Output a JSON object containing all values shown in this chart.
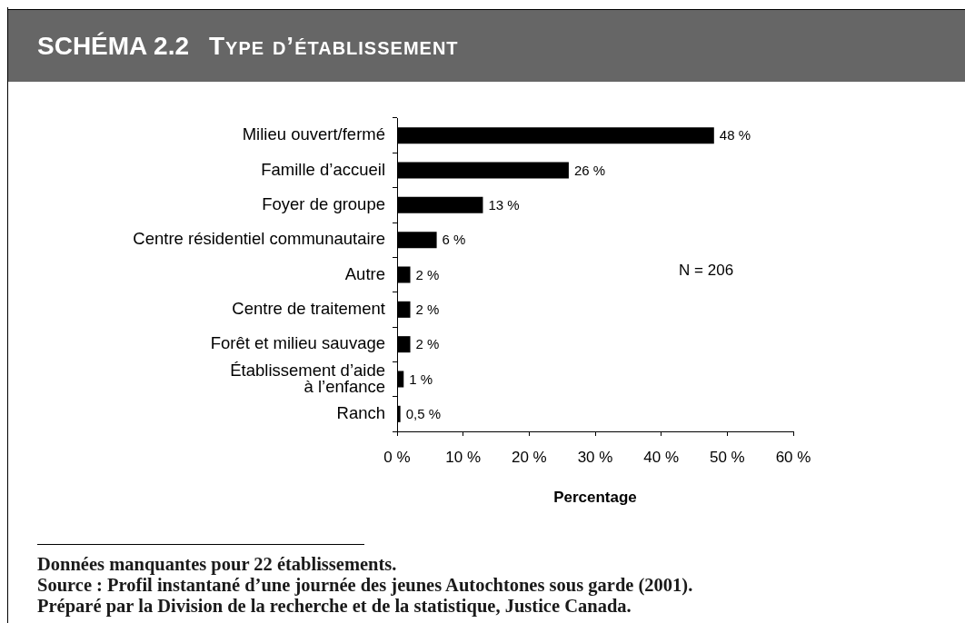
{
  "chart_data": {
    "type": "bar",
    "orientation": "horizontal",
    "title": "SCHÉMA 2.2",
    "subtitle": "Type d’établissement",
    "xlabel": "Percentage",
    "categories": [
      "Milieu ouvert/fermé",
      "Famille d’accueil",
      "Foyer de groupe",
      "Centre résidentiel communautaire",
      "Autre",
      "Centre de traitement",
      "Forêt et milieu sauvage",
      "Établissement d’aide\nà l’enfance",
      "Ranch"
    ],
    "values": [
      48,
      26,
      13,
      6,
      2,
      2,
      2,
      1,
      0.5
    ],
    "color": "#000000",
    "value_labels": [
      "48 %",
      "26 %",
      "13 %",
      "6 %",
      "2 %",
      "2 %",
      "2 %",
      "1 %",
      "0,5 %"
    ],
    "xlim": [
      0,
      60
    ],
    "xticks": [
      {
        "value": 0,
        "label": "0 %"
      },
      {
        "value": 10,
        "label": "10 %"
      },
      {
        "value": 20,
        "label": "20 %"
      },
      {
        "value": 30,
        "label": "30 %"
      },
      {
        "value": 40,
        "label": "40 %"
      },
      {
        "value": 50,
        "label": "50 %"
      },
      {
        "value": 60,
        "label": "60 %"
      }
    ],
    "annotations": [
      "N = 206",
      "Données manquantes pour 22 établissements.",
      "Source : Profil instantané d’une journée des jeunes Autochtones sous garde (2001).",
      "Préparé par la Division de la recherche et de la statistique, Justice Canada."
    ]
  }
}
